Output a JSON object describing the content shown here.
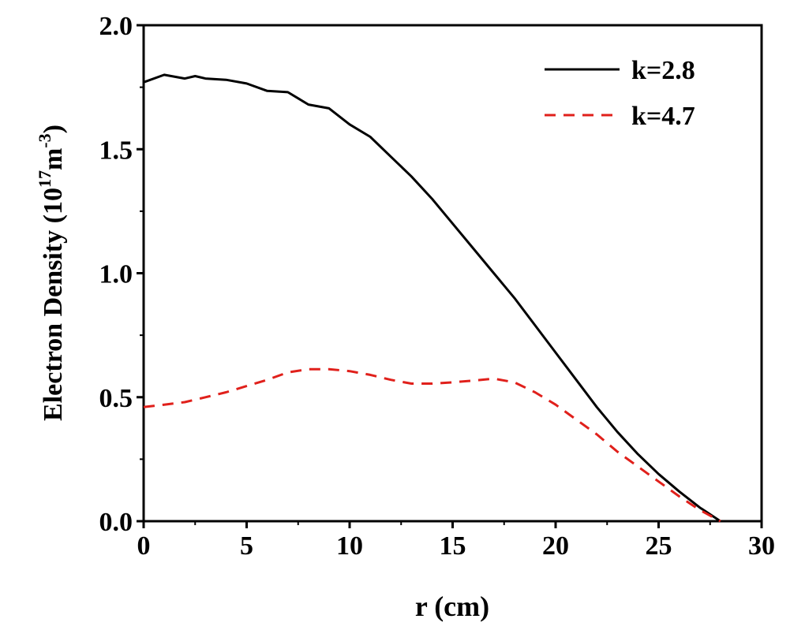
{
  "chart_data": {
    "type": "line",
    "xlabel": "r (cm)",
    "ylabel_main": "Electron Density (10",
    "ylabel_exp1": "17",
    "ylabel_mid": "m",
    "ylabel_exp2": "-3",
    "ylabel_end": ")",
    "xlim": [
      0,
      30
    ],
    "ylim": [
      0,
      2.0
    ],
    "xticks": [
      "0",
      "5",
      "10",
      "15",
      "20",
      "25",
      "30"
    ],
    "yticks": [
      "0.0",
      "0.5",
      "1.0",
      "1.5",
      "2.0"
    ],
    "grid": false,
    "legend_position": "top-right",
    "series": [
      {
        "name": "k=2.8",
        "color": "#000000",
        "dash": "solid",
        "x": [
          0,
          1,
          2,
          2.5,
          3,
          4,
          5,
          6,
          7,
          8,
          9,
          10,
          11,
          12,
          13,
          14,
          15,
          16,
          17,
          18,
          19,
          20,
          21,
          22,
          23,
          24,
          25,
          26,
          27,
          28
        ],
        "y": [
          1.77,
          1.8,
          1.785,
          1.795,
          1.785,
          1.78,
          1.765,
          1.735,
          1.73,
          1.68,
          1.665,
          1.6,
          1.55,
          1.47,
          1.39,
          1.3,
          1.2,
          1.1,
          1.0,
          0.9,
          0.79,
          0.68,
          0.57,
          0.46,
          0.36,
          0.27,
          0.19,
          0.12,
          0.055,
          0.0
        ]
      },
      {
        "name": "k=4.7",
        "color": "#e0201b",
        "dash": "dashed",
        "x": [
          0,
          1,
          2,
          3,
          4,
          5,
          6,
          7,
          8,
          9,
          10,
          11,
          12,
          13,
          14,
          15,
          16,
          17,
          18,
          19,
          20,
          21,
          22,
          23,
          24,
          25,
          26,
          27,
          28
        ],
        "y": [
          0.46,
          0.47,
          0.48,
          0.5,
          0.52,
          0.545,
          0.57,
          0.6,
          0.613,
          0.613,
          0.605,
          0.59,
          0.57,
          0.555,
          0.555,
          0.56,
          0.567,
          0.575,
          0.56,
          0.52,
          0.47,
          0.41,
          0.35,
          0.28,
          0.22,
          0.16,
          0.1,
          0.045,
          0.0
        ]
      }
    ]
  }
}
